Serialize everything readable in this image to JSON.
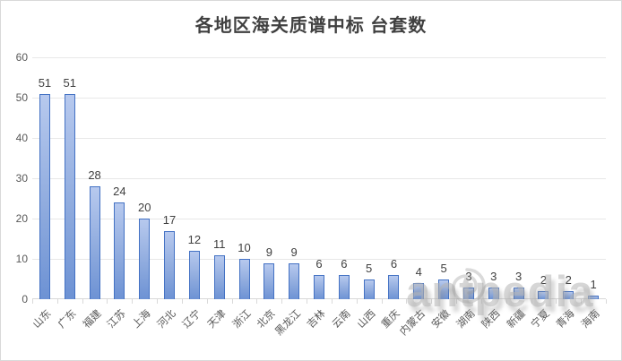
{
  "chart_data": {
    "type": "bar",
    "title": "各地区海关质谱中标 台套数",
    "categories": [
      "山东",
      "广东",
      "福建",
      "江苏",
      "上海",
      "河北",
      "辽宁",
      "天津",
      "浙江",
      "北京",
      "黑龙江",
      "吉林",
      "云南",
      "山西",
      "重庆",
      "内蒙古",
      "安徽",
      "湖南",
      "陕西",
      "新疆",
      "宁夏",
      "青海",
      "海南"
    ],
    "values": [
      51,
      51,
      28,
      24,
      20,
      17,
      12,
      11,
      10,
      9,
      9,
      6,
      6,
      5,
      6,
      4,
      5,
      3,
      3,
      3,
      2,
      2,
      1
    ],
    "xlabel": "",
    "ylabel": "",
    "ylim": [
      0,
      60
    ],
    "yticks": [
      0,
      10,
      20,
      30,
      40,
      50,
      60
    ],
    "grid": true,
    "legend": false,
    "data_labels": true,
    "xtick_rotation": -45,
    "colors": {
      "bar_fill_top": "#b7c9ee",
      "bar_fill_bottom": "#6d92d4",
      "bar_border": "#4472c4",
      "gridline": "#e8e8e8",
      "axis_text": "#595959",
      "title_text": "#404040",
      "data_label_text": "#404040",
      "chart_border": "#d9d9d9"
    }
  },
  "watermark": {
    "text": "antpedia",
    "logo": "ant-swirl-logo"
  }
}
